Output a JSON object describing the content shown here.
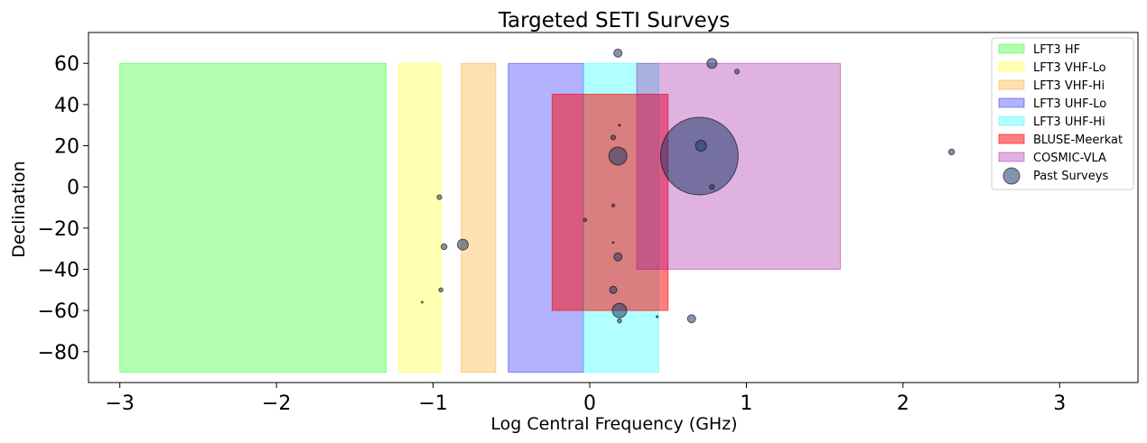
{
  "chart_data": {
    "type": "scatter",
    "title": "Targeted SETI Surveys",
    "xlabel": "Log Central Frequency (GHz)",
    "ylabel": "Declination",
    "xlim": [
      -3.2,
      3.5
    ],
    "ylim": [
      -95,
      75
    ],
    "xticks": [
      -3,
      -2,
      -1,
      0,
      1,
      2,
      3
    ],
    "yticks": [
      -80,
      -60,
      -40,
      -20,
      0,
      20,
      40,
      60
    ],
    "grid": false,
    "legend_position": "upper-right",
    "regions": [
      {
        "name": "LFT3 HF",
        "x0": -3.0,
        "x1": -1.3,
        "y0": -90,
        "y1": 60,
        "color": "#00ff00",
        "alpha": 0.3
      },
      {
        "name": "LFT3 VHF-Lo",
        "x0": -1.22,
        "x1": -0.95,
        "y0": -90,
        "y1": 60,
        "color": "#ffff00",
        "alpha": 0.3
      },
      {
        "name": "LFT3 VHF-Hi",
        "x0": -0.82,
        "x1": -0.6,
        "y0": -90,
        "y1": 60,
        "color": "#ff9900",
        "alpha": 0.3
      },
      {
        "name": "LFT3 UHF-Lo",
        "x0": -0.52,
        "x1": -0.04,
        "y0": -90,
        "y1": 60,
        "color": "#0000ff",
        "alpha": 0.3
      },
      {
        "name": "LFT3 UHF-Hi",
        "x0": -0.04,
        "x1": 0.44,
        "y0": -90,
        "y1": 60,
        "color": "#00ffff",
        "alpha": 0.3
      },
      {
        "name": "BLUSE-Meerkat",
        "x0": -0.24,
        "x1": 0.5,
        "y0": -60,
        "y1": 45,
        "color": "#ff0000",
        "alpha": 0.5
      },
      {
        "name": "COSMIC-VLA",
        "x0": 0.3,
        "x1": 1.6,
        "y0": -40,
        "y1": 60,
        "color": "#990099",
        "alpha": 0.3
      }
    ],
    "series": [
      {
        "name": "Past Surveys",
        "color": "#1f3a6b",
        "alpha": 0.55,
        "points": [
          {
            "x": 0.7,
            "y": 15,
            "size": 43
          },
          {
            "x": 0.18,
            "y": 15,
            "size": 10
          },
          {
            "x": 0.19,
            "y": -60,
            "size": 8
          },
          {
            "x": 0.71,
            "y": 20,
            "size": 6
          },
          {
            "x": -0.81,
            "y": -28,
            "size": 6
          },
          {
            "x": 0.78,
            "y": 60,
            "size": 5.5
          },
          {
            "x": 0.18,
            "y": 65,
            "size": 4.5
          },
          {
            "x": 0.65,
            "y": -64,
            "size": 4.5
          },
          {
            "x": 0.18,
            "y": -34,
            "size": 4.5
          },
          {
            "x": 0.15,
            "y": -50,
            "size": 4
          },
          {
            "x": 2.31,
            "y": 17,
            "size": 3.2
          },
          {
            "x": -0.93,
            "y": -29,
            "size": 3.2
          },
          {
            "x": 0.94,
            "y": 56,
            "size": 2.6
          },
          {
            "x": 0.15,
            "y": 24,
            "size": 2.6
          },
          {
            "x": -0.96,
            "y": -5,
            "size": 2.6
          },
          {
            "x": 0.78,
            "y": 0,
            "size": 2.6
          },
          {
            "x": -0.95,
            "y": -50,
            "size": 2.3
          },
          {
            "x": 0.19,
            "y": -65,
            "size": 2.3
          },
          {
            "x": -0.03,
            "y": -16,
            "size": 1.8
          },
          {
            "x": 0.15,
            "y": -9,
            "size": 1.6
          },
          {
            "x": 0.19,
            "y": 30,
            "size": 1.1
          },
          {
            "x": 0.43,
            "y": -63,
            "size": 1.1
          },
          {
            "x": -1.07,
            "y": -56,
            "size": 1.0
          },
          {
            "x": 0.15,
            "y": -27,
            "size": 0.9
          }
        ]
      }
    ]
  }
}
